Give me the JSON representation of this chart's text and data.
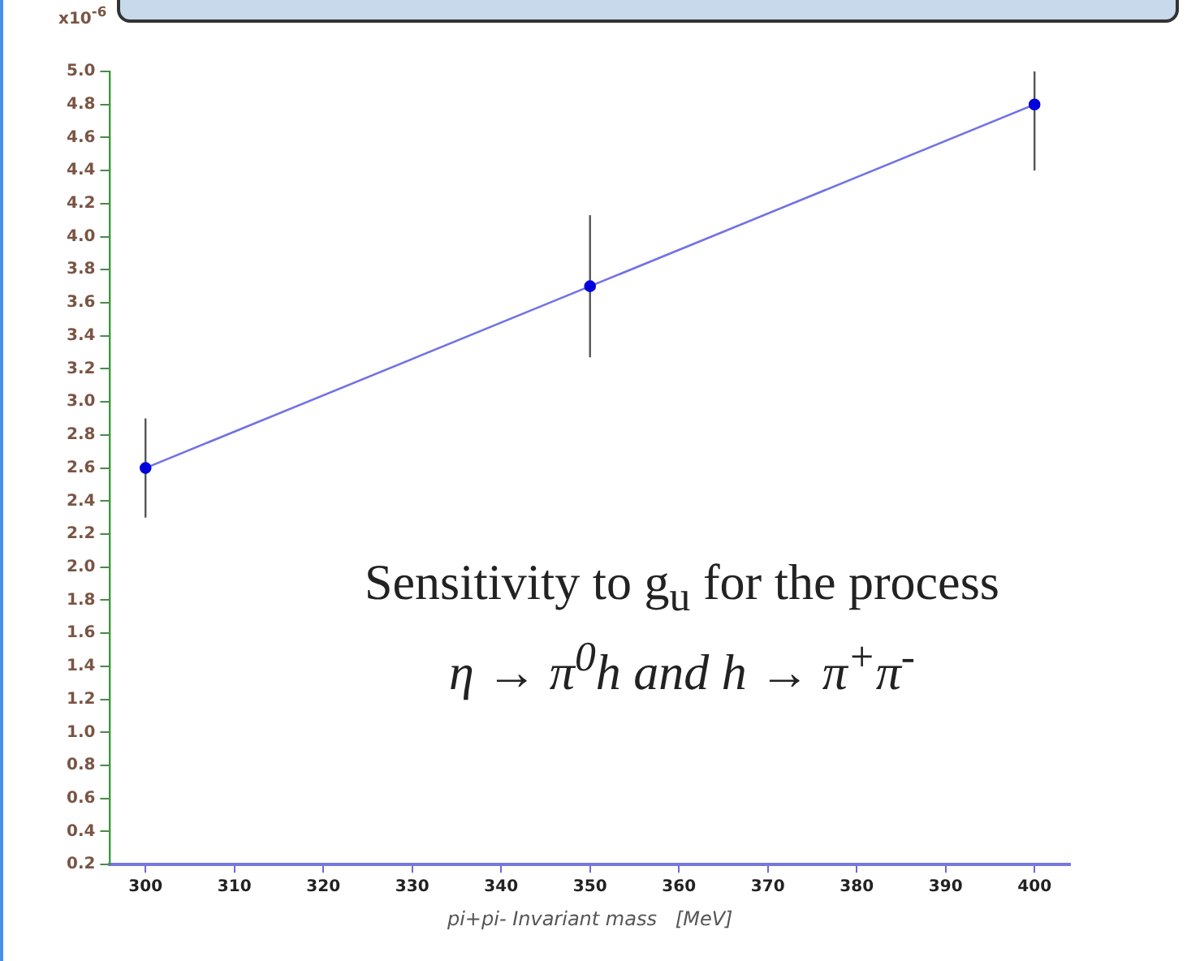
{
  "chart_data": {
    "type": "line",
    "xlabel": "pi+pi- Invariant mass   [MeV]",
    "ylabel": "x10$^{-6}$",
    "annotations": [
      "Sensitivity to g$_{u}$ for the process",
      "η → π$^{0}$h and h → π$^{+}$π$^{-}$"
    ],
    "x": [
      300,
      350,
      400
    ],
    "series": [
      {
        "color": "#0000dd",
        "values": [
          2.6,
          3.7,
          4.8
        ],
        "errors": [
          0.3,
          0.43,
          [
            4.4,
            5.0
          ]
        ]
      }
    ],
    "xlim": [
      296,
      404
    ],
    "xticks": [
      300,
      310,
      320,
      330,
      340,
      350,
      360,
      370,
      380,
      390,
      400
    ],
    "ylim": [
      0.2,
      5.0
    ],
    "yticks": [
      0.2,
      0.4,
      0.6,
      0.8,
      {
        "value": 1,
        "label": "1.0"
      },
      1.2,
      1.4,
      1.6,
      1.8,
      {
        "value": 2,
        "label": "2.0"
      },
      2.2,
      2.4,
      2.6,
      2.8,
      {
        "value": 3,
        "label": "3.0"
      },
      3.2,
      3.4,
      3.6,
      3.8,
      {
        "value": 4,
        "label": "4.0"
      },
      4.2,
      4.4,
      4.6,
      4.8,
      {
        "value": 5,
        "label": "5.0"
      }
    ],
    "grid": false,
    "legend": false,
    "marker": "circle",
    "line_style": "solid"
  }
}
